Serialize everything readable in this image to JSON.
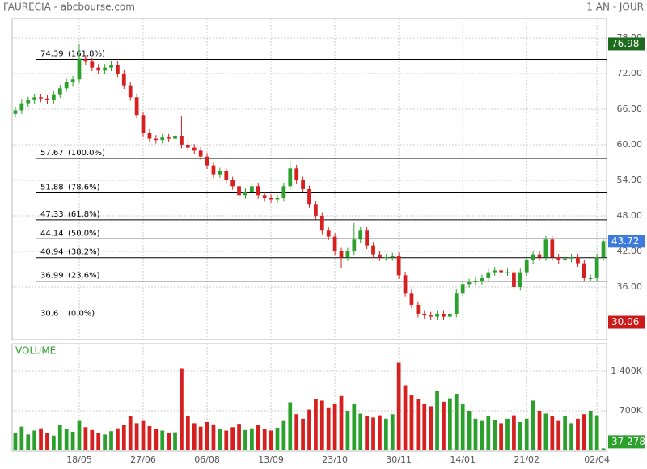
{
  "header": {
    "title": "FAURECIA - abcbourse.com",
    "period": "1 AN - JOUR"
  },
  "chart_data": {
    "type": "candlestick",
    "categories": [
      null,
      null,
      null,
      null,
      null,
      null,
      null,
      null,
      null,
      null,
      "18/05",
      null,
      null,
      null,
      null,
      null,
      null,
      null,
      null,
      null,
      "27/06",
      null,
      null,
      null,
      null,
      null,
      null,
      null,
      null,
      null,
      "06/08",
      null,
      null,
      null,
      null,
      null,
      null,
      null,
      null,
      null,
      "13/09",
      null,
      null,
      null,
      null,
      null,
      null,
      null,
      null,
      null,
      "23/10",
      null,
      null,
      null,
      null,
      null,
      null,
      null,
      null,
      null,
      "30/11",
      null,
      null,
      null,
      null,
      null,
      null,
      null,
      null,
      null,
      "14/01",
      null,
      null,
      null,
      null,
      null,
      null,
      null,
      null,
      null,
      "21/02",
      null,
      null,
      null,
      null,
      null,
      null,
      null,
      null,
      null,
      null,
      "02/04",
      null
    ],
    "open": [
      65.2,
      65.8,
      67,
      67.5,
      68,
      67.8,
      67.5,
      68.5,
      69.5,
      70.5,
      71,
      74.5,
      74,
      73,
      72.5,
      73,
      73.5,
      72,
      70,
      68,
      65,
      62,
      61,
      60.8,
      61.2,
      61,
      61.5,
      60,
      59.5,
      59,
      58,
      56.5,
      55,
      55.5,
      54,
      53,
      51.5,
      52,
      53,
      51.5,
      51,
      50.8,
      51,
      53,
      56,
      54,
      52.5,
      50,
      48,
      45.5,
      44.5,
      42,
      41,
      42,
      44,
      45.5,
      43,
      41.5,
      41,
      41,
      41.2,
      38,
      35,
      33,
      31.5,
      31.2,
      31,
      31.5,
      31,
      31.5,
      35,
      36.5,
      36.8,
      37,
      37.5,
      38.5,
      38.8,
      38.5,
      38.5,
      36,
      38.5,
      40.5,
      41.5,
      41,
      44,
      41,
      40.5,
      40.8,
      41,
      40,
      37.5,
      37.5,
      41
    ],
    "high": [
      66.4,
      67.6,
      68.1,
      68.6,
      68.6,
      68.4,
      69.1,
      70.1,
      71.1,
      71.6,
      77,
      75.1,
      74.6,
      73.6,
      73.6,
      74.1,
      74.1,
      72.6,
      70.6,
      68.6,
      65.6,
      62.6,
      61.6,
      61.8,
      61.8,
      62.1,
      64.8,
      60.6,
      60.1,
      59.6,
      58.6,
      57.1,
      56.1,
      56.1,
      54.6,
      53.6,
      52.6,
      53.6,
      53.6,
      52.1,
      51.6,
      51.6,
      53.6,
      57.2,
      56.6,
      54.6,
      53.1,
      50.6,
      48.6,
      46.1,
      45.1,
      42.6,
      42.6,
      46.8,
      46.1,
      46.1,
      43.6,
      42.1,
      41.6,
      41.8,
      41.8,
      38.6,
      35.6,
      33.6,
      32.1,
      31.8,
      32.1,
      32.1,
      32.1,
      35.6,
      37.1,
      37.4,
      37.6,
      38.1,
      39.1,
      39.4,
      39.4,
      39.1,
      39.1,
      39.1,
      41.1,
      42.1,
      42.1,
      44.6,
      44.6,
      41.6,
      41.4,
      41.6,
      41.6,
      40.6,
      38.1,
      41.6,
      44
    ],
    "low": [
      64.6,
      65.2,
      66.4,
      66.9,
      67.2,
      66.9,
      66.9,
      67.9,
      68.9,
      69.9,
      70.4,
      73.4,
      72.4,
      71.9,
      71.9,
      72.4,
      71.4,
      69.4,
      67.4,
      64.4,
      61.4,
      60.4,
      60.2,
      60.2,
      60.4,
      60.4,
      59.4,
      58.9,
      58.4,
      57.4,
      55.9,
      54.4,
      54.4,
      53.4,
      52.4,
      50.9,
      50.9,
      51.4,
      50.9,
      50.4,
      50.2,
      50.2,
      50.4,
      52.4,
      53.4,
      51.9,
      49.4,
      47.4,
      44.9,
      43.9,
      41.4,
      39.2,
      40.4,
      41.4,
      43.4,
      42.4,
      40.9,
      40.4,
      40.4,
      40.4,
      37.4,
      34.4,
      32.4,
      30.9,
      30.6,
      30.4,
      30.4,
      30.4,
      30.4,
      30.9,
      34.4,
      35.9,
      36.2,
      36.4,
      36.9,
      37.9,
      37.9,
      37.9,
      35.4,
      35.4,
      37.9,
      39.9,
      40.4,
      40.4,
      40.4,
      39.9,
      39.9,
      40.2,
      39.4,
      36.9,
      36.9,
      36.9,
      40.4
    ],
    "close": [
      65.8,
      67,
      67.5,
      68,
      67.8,
      67.5,
      68.5,
      69.5,
      70.5,
      71,
      74.5,
      74,
      73,
      72.5,
      73,
      73.5,
      72,
      70,
      68,
      65,
      62,
      61,
      60.8,
      61.2,
      61,
      61.5,
      60,
      59.5,
      59,
      58,
      56.5,
      55,
      55.5,
      54,
      53,
      51.5,
      52,
      53,
      51.5,
      51,
      50.8,
      51,
      53,
      56,
      54,
      52.5,
      50,
      48,
      45.5,
      44.5,
      42,
      41,
      42,
      44,
      45.5,
      43,
      41.5,
      41,
      41,
      41.2,
      38,
      35,
      33,
      31.5,
      31.2,
      31,
      31.5,
      31,
      31.5,
      35,
      36.5,
      36.8,
      37,
      37.5,
      38.5,
      38.8,
      38.5,
      38.5,
      36,
      38.5,
      40.5,
      41.5,
      41,
      44,
      41,
      40.5,
      40.8,
      41,
      40,
      37.5,
      37.5,
      41,
      43.72
    ],
    "up_color": "#2ca02c",
    "down_color": "#d62020",
    "ylim": [
      27.13,
      81.27
    ],
    "yticks": [
      {
        "value": 36,
        "label": "36.00"
      },
      {
        "value": 42,
        "label": "42.00"
      },
      {
        "value": 48,
        "label": "48.00"
      },
      {
        "value": 54,
        "label": "54.00"
      },
      {
        "value": 60,
        "label": "60.00"
      },
      {
        "value": 66,
        "label": "66.00"
      },
      {
        "value": 72,
        "label": "72.00"
      },
      {
        "value": 78,
        "label": "78.00"
      }
    ],
    "grid": true,
    "fibonacci": [
      {
        "value": 74.39,
        "ratio": "(161.8%)"
      },
      {
        "value": 57.67,
        "ratio": "(100.0%)"
      },
      {
        "value": 51.88,
        "ratio": "(78.6%)"
      },
      {
        "value": 47.33,
        "ratio": "(61.8%)"
      },
      {
        "value": 44.14,
        "ratio": "(50.0%)"
      },
      {
        "value": 40.94,
        "ratio": "(38.2%)"
      },
      {
        "value": 36.99,
        "ratio": "(23.6%)"
      },
      {
        "value": 30.6,
        "ratio": "(0.0%)"
      }
    ],
    "price_markers": [
      {
        "value": 76.98,
        "color": "#1d6b1d"
      },
      {
        "value": 43.72,
        "color": "#3b7be0"
      },
      {
        "value": 30.06,
        "color": "#cc1a1a"
      }
    ],
    "volume_title": "VOLUME",
    "volume": [
      310000,
      420000,
      280000,
      350000,
      390000,
      300000,
      260000,
      450000,
      380000,
      330000,
      520000,
      410000,
      360000,
      300000,
      280000,
      340000,
      390000,
      450000,
      600000,
      480000,
      520000,
      430000,
      380000,
      350000,
      300000,
      320000,
      1450000,
      600000,
      480000,
      420000,
      500000,
      460000,
      380000,
      350000,
      410000,
      470000,
      360000,
      390000,
      450000,
      380000,
      350000,
      400000,
      520000,
      850000,
      640000,
      560000,
      720000,
      900000,
      880000,
      760000,
      820000,
      960000,
      700000,
      820000,
      650000,
      600000,
      580000,
      620000,
      560000,
      640000,
      1550000,
      1150000,
      980000,
      900000,
      820000,
      780000,
      1050000,
      860000,
      920000,
      1000000,
      820000,
      700000,
      560000,
      520000,
      600000,
      540000,
      480000,
      560000,
      620000,
      500000,
      560000,
      880000,
      700000,
      650000,
      600000,
      520000,
      600000,
      480000,
      560000,
      640000,
      700000,
      620000,
      37278
    ],
    "volume_ylim": [
      0,
      1886000
    ],
    "volume_yticks": [
      {
        "value": 700000,
        "label": "700K"
      },
      {
        "value": 1400000,
        "label": "1 400K"
      }
    ],
    "volume_marker": {
      "value": 37278,
      "label": "37 278",
      "color": "#2ca02c"
    }
  }
}
